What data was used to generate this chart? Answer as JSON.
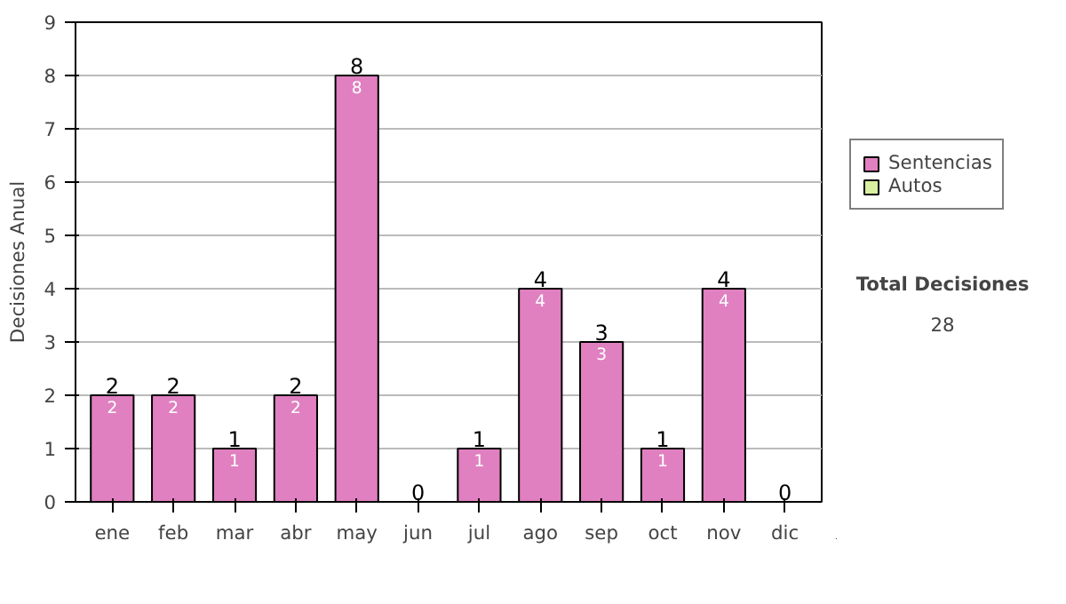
{
  "chart_data": {
    "type": "bar",
    "stacked": true,
    "ylabel": "Decisiones Anual",
    "categories": [
      "ene",
      "feb",
      "mar",
      "abr",
      "may",
      "jun",
      "jul",
      "ago",
      "sep",
      "oct",
      "nov",
      "dic"
    ],
    "series": [
      {
        "name": "Sentencias",
        "color": "#e080c0",
        "values": [
          2,
          2,
          1,
          2,
          8,
          0,
          1,
          4,
          3,
          1,
          4,
          0
        ],
        "value_labels": [
          "2",
          "2",
          "1",
          "2",
          "8",
          null,
          "1",
          "4",
          "3",
          "1",
          "4",
          null
        ]
      },
      {
        "name": "Autos",
        "color": "#d8f0a0",
        "values": [
          0,
          0,
          0,
          0,
          0,
          0,
          0,
          0,
          0,
          0,
          0,
          0
        ]
      }
    ],
    "totals": [
      "2",
      "2",
      "1",
      "2",
      "8",
      "0",
      "1",
      "4",
      "3",
      "1",
      "4",
      "0"
    ],
    "ylim": [
      0,
      9
    ],
    "yticks": [
      0,
      1,
      2,
      3,
      4,
      5,
      6,
      7,
      8,
      9
    ],
    "grid": "y",
    "legend": "right",
    "annotations": [
      "Total Decisiones",
      "28"
    ]
  }
}
